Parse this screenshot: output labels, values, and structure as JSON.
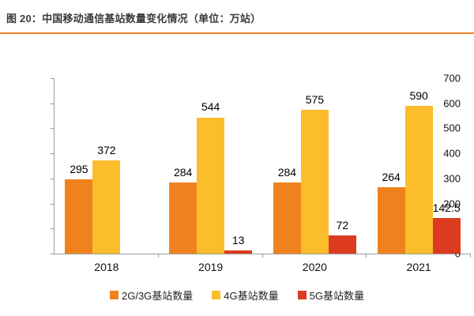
{
  "header": {
    "title": "图 20：中国移动通信基站数量变化情况（单位：万站）",
    "accent_color": "#F08632"
  },
  "chart_data": {
    "type": "bar",
    "title": "中国移动通信基站数量变化情况",
    "unit": "万站",
    "categories": [
      "2018",
      "2019",
      "2020",
      "2021"
    ],
    "series": [
      {
        "name": "2G/3G基站数量",
        "color": "#F0821E",
        "values": [
          295,
          284,
          284,
          264
        ]
      },
      {
        "name": "4G基站数量",
        "color": "#FBBD2B",
        "values": [
          372,
          544,
          575,
          590
        ]
      },
      {
        "name": "5G基站数量",
        "color": "#DC3B20",
        "values": [
          null,
          13,
          72,
          142.5
        ]
      }
    ],
    "value_labels": [
      [
        "295",
        "284",
        "284",
        "264"
      ],
      [
        "372",
        "544",
        "575",
        "590"
      ],
      [
        "",
        "13",
        "72",
        "142.5"
      ]
    ],
    "ylim": [
      0,
      700
    ],
    "ytick_step": 100,
    "yticks": [
      "0",
      "100",
      "200",
      "300",
      "400",
      "500",
      "600",
      "700"
    ],
    "grid": false,
    "legend_position": "bottom",
    "axis_color": "#9a9a9a"
  }
}
